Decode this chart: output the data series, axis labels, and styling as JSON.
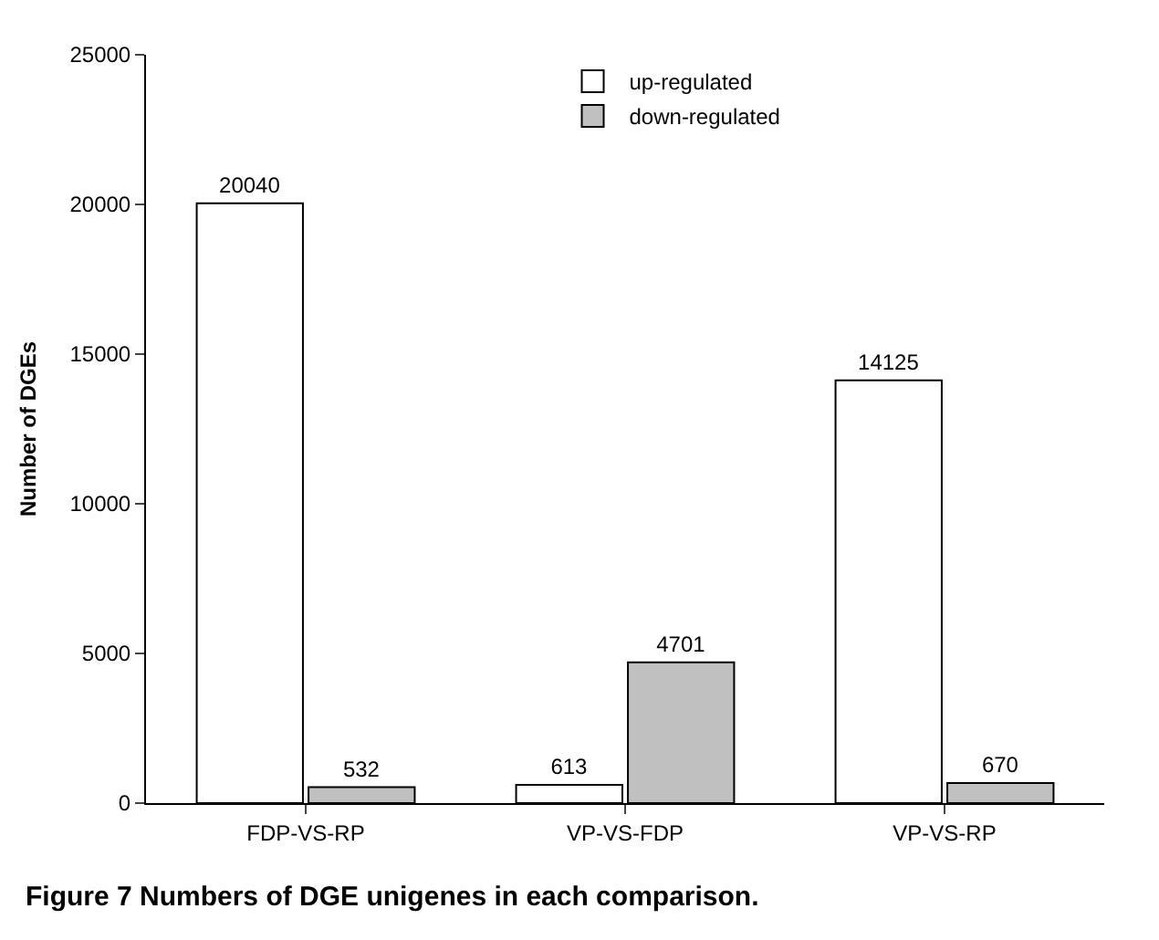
{
  "chart_data": {
    "type": "bar",
    "title": "Figure 7 Numbers of DGE unigenes in each comparison.",
    "ylabel": "Number of DGEs",
    "categories": [
      "FDP-VS-RP",
      "VP-VS-FDP",
      "VP-VS-RP"
    ],
    "series": [
      {
        "name": "up-regulated",
        "color": "#ffffff",
        "values": [
          20040,
          613,
          14125
        ]
      },
      {
        "name": "down-regulated",
        "color": "#c0c0c0",
        "values": [
          532,
          4701,
          670
        ]
      }
    ],
    "ylim": [
      0,
      25000
    ],
    "yticks": [
      0,
      5000,
      10000,
      15000,
      20000,
      25000
    ],
    "legend": "top",
    "data_labels": true
  }
}
